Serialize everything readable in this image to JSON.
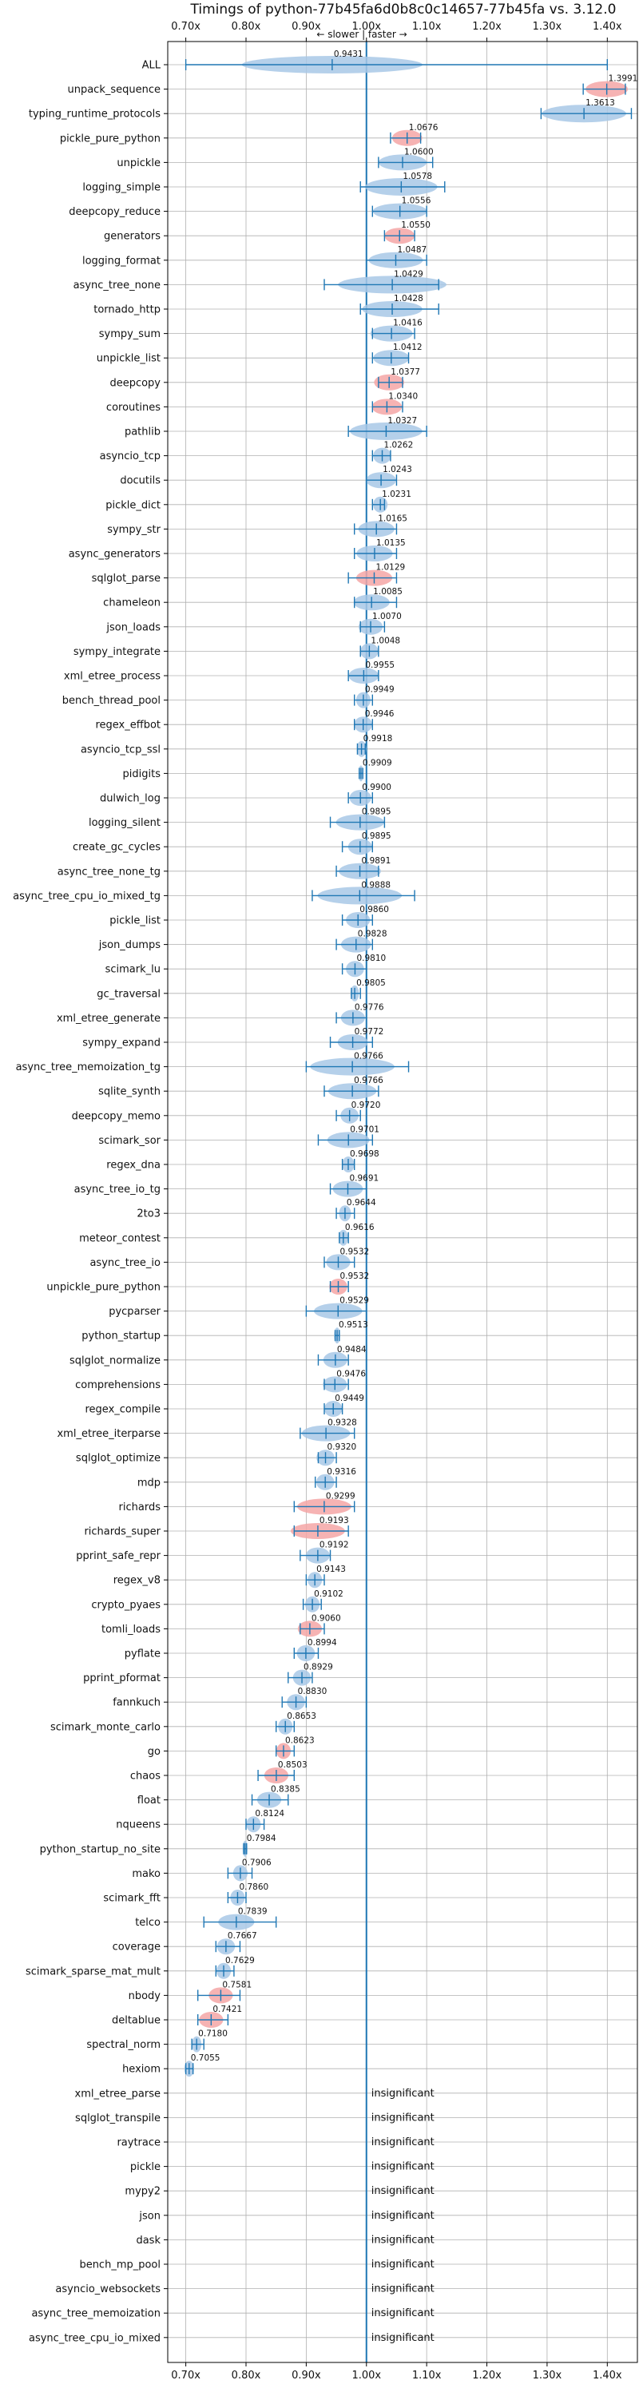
{
  "chart_data": {
    "type": "violin",
    "title": "Timings of python-77b45fa6d0b8c0c14657-77b45fa vs. 3.12.0",
    "direction_label": "← slower | faster →",
    "xlim": [
      0.67,
      1.45
    ],
    "x_ticks": [
      0.7,
      0.8,
      0.9,
      1.0,
      1.1,
      1.2,
      1.3,
      1.4
    ],
    "x_tick_labels": [
      "0.70x",
      "0.80x",
      "0.90x",
      "1.00x",
      "1.10x",
      "1.20x",
      "1.30x",
      "1.40x"
    ],
    "reference_value": 1.0,
    "grid": true,
    "colors": {
      "default_violin": "#a8c8e6",
      "highlight_violin": "#f4a6a6",
      "stroke": "#1f77b4",
      "reference_line": "#1f77b4",
      "grid": "#b0b0b0"
    },
    "insignificant_label": "insignificant",
    "benchmarks": [
      {
        "name": "ALL",
        "value": 0.9431,
        "min": 0.7,
        "max": 1.4,
        "spread": 0.15,
        "highlight": false
      },
      {
        "name": "unpack_sequence",
        "value": 1.3991,
        "min": 1.36,
        "max": 1.43,
        "spread": 0.035,
        "highlight": true
      },
      {
        "name": "typing_runtime_protocols",
        "value": 1.3613,
        "min": 1.29,
        "max": 1.44,
        "spread": 0.07,
        "highlight": false
      },
      {
        "name": "pickle_pure_python",
        "value": 1.0676,
        "min": 1.04,
        "max": 1.09,
        "spread": 0.025,
        "highlight": true
      },
      {
        "name": "unpickle",
        "value": 1.06,
        "min": 1.02,
        "max": 1.11,
        "spread": 0.04,
        "highlight": false
      },
      {
        "name": "logging_simple",
        "value": 1.0578,
        "min": 0.99,
        "max": 1.13,
        "spread": 0.06,
        "highlight": false
      },
      {
        "name": "deepcopy_reduce",
        "value": 1.0556,
        "min": 1.01,
        "max": 1.1,
        "spread": 0.045,
        "highlight": false
      },
      {
        "name": "generators",
        "value": 1.055,
        "min": 1.03,
        "max": 1.08,
        "spread": 0.025,
        "highlight": true
      },
      {
        "name": "logging_format",
        "value": 1.0487,
        "min": 1.0,
        "max": 1.1,
        "spread": 0.045,
        "highlight": false
      },
      {
        "name": "async_tree_none",
        "value": 1.0429,
        "min": 0.93,
        "max": 1.12,
        "spread": 0.09,
        "highlight": false
      },
      {
        "name": "tornado_http",
        "value": 1.0428,
        "min": 0.99,
        "max": 1.12,
        "spread": 0.05,
        "highlight": false
      },
      {
        "name": "sympy_sum",
        "value": 1.0416,
        "min": 1.01,
        "max": 1.08,
        "spread": 0.035,
        "highlight": false
      },
      {
        "name": "unpickle_list",
        "value": 1.0412,
        "min": 1.01,
        "max": 1.07,
        "spread": 0.03,
        "highlight": false
      },
      {
        "name": "deepcopy",
        "value": 1.0377,
        "min": 1.02,
        "max": 1.06,
        "spread": 0.025,
        "highlight": true
      },
      {
        "name": "coroutines",
        "value": 1.034,
        "min": 1.01,
        "max": 1.06,
        "spread": 0.025,
        "highlight": true
      },
      {
        "name": "pathlib",
        "value": 1.0327,
        "min": 0.97,
        "max": 1.1,
        "spread": 0.06,
        "highlight": false
      },
      {
        "name": "asyncio_tcp",
        "value": 1.0262,
        "min": 1.01,
        "max": 1.04,
        "spread": 0.015,
        "highlight": false
      },
      {
        "name": "docutils",
        "value": 1.0243,
        "min": 1.0,
        "max": 1.05,
        "spread": 0.025,
        "highlight": false
      },
      {
        "name": "pickle_dict",
        "value": 1.0231,
        "min": 1.01,
        "max": 1.03,
        "spread": 0.012,
        "highlight": false
      },
      {
        "name": "sympy_str",
        "value": 1.0165,
        "min": 0.98,
        "max": 1.05,
        "spread": 0.03,
        "highlight": false
      },
      {
        "name": "async_generators",
        "value": 1.0135,
        "min": 0.98,
        "max": 1.05,
        "spread": 0.03,
        "highlight": false
      },
      {
        "name": "sqlglot_parse",
        "value": 1.0129,
        "min": 0.97,
        "max": 1.05,
        "spread": 0.03,
        "highlight": true
      },
      {
        "name": "chameleon",
        "value": 1.0085,
        "min": 0.98,
        "max": 1.05,
        "spread": 0.03,
        "highlight": false
      },
      {
        "name": "json_loads",
        "value": 1.007,
        "min": 0.99,
        "max": 1.03,
        "spread": 0.02,
        "highlight": false
      },
      {
        "name": "sympy_integrate",
        "value": 1.0048,
        "min": 0.99,
        "max": 1.02,
        "spread": 0.015,
        "highlight": false
      },
      {
        "name": "xml_etree_process",
        "value": 0.9955,
        "min": 0.97,
        "max": 1.02,
        "spread": 0.025,
        "highlight": false
      },
      {
        "name": "bench_thread_pool",
        "value": 0.9949,
        "min": 0.98,
        "max": 1.01,
        "spread": 0.012,
        "highlight": false
      },
      {
        "name": "regex_effbot",
        "value": 0.9946,
        "min": 0.98,
        "max": 1.01,
        "spread": 0.015,
        "highlight": false
      },
      {
        "name": "asyncio_tcp_ssl",
        "value": 0.9918,
        "min": 0.985,
        "max": 0.998,
        "spread": 0.008,
        "highlight": false
      },
      {
        "name": "pidigits",
        "value": 0.9909,
        "min": 0.988,
        "max": 0.994,
        "spread": 0.004,
        "highlight": false
      },
      {
        "name": "dulwich_log",
        "value": 0.99,
        "min": 0.97,
        "max": 1.01,
        "spread": 0.018,
        "highlight": false
      },
      {
        "name": "logging_silent",
        "value": 0.9895,
        "min": 0.94,
        "max": 1.03,
        "spread": 0.04,
        "highlight": false
      },
      {
        "name": "create_gc_cycles",
        "value": 0.9895,
        "min": 0.96,
        "max": 1.01,
        "spread": 0.02,
        "highlight": false
      },
      {
        "name": "async_tree_none_tg",
        "value": 0.9891,
        "min": 0.95,
        "max": 1.02,
        "spread": 0.035,
        "highlight": false
      },
      {
        "name": "async_tree_cpu_io_mixed_tg",
        "value": 0.9888,
        "min": 0.91,
        "max": 1.08,
        "spread": 0.07,
        "highlight": false
      },
      {
        "name": "pickle_list",
        "value": 0.986,
        "min": 0.96,
        "max": 1.01,
        "spread": 0.02,
        "highlight": false
      },
      {
        "name": "json_dumps",
        "value": 0.9828,
        "min": 0.95,
        "max": 1.01,
        "spread": 0.025,
        "highlight": false
      },
      {
        "name": "scimark_lu",
        "value": 0.981,
        "min": 0.96,
        "max": 1.0,
        "spread": 0.015,
        "highlight": false
      },
      {
        "name": "gc_traversal",
        "value": 0.9805,
        "min": 0.975,
        "max": 0.99,
        "spread": 0.007,
        "highlight": false
      },
      {
        "name": "xml_etree_generate",
        "value": 0.9776,
        "min": 0.95,
        "max": 1.0,
        "spread": 0.02,
        "highlight": false
      },
      {
        "name": "sympy_expand",
        "value": 0.9772,
        "min": 0.94,
        "max": 1.01,
        "spread": 0.025,
        "highlight": false
      },
      {
        "name": "async_tree_memoization_tg",
        "value": 0.9766,
        "min": 0.9,
        "max": 1.07,
        "spread": 0.07,
        "highlight": false
      },
      {
        "name": "sqlite_synth",
        "value": 0.9766,
        "min": 0.93,
        "max": 1.02,
        "spread": 0.04,
        "highlight": false
      },
      {
        "name": "deepcopy_memo",
        "value": 0.972,
        "min": 0.95,
        "max": 0.99,
        "spread": 0.015,
        "highlight": false
      },
      {
        "name": "scimark_sor",
        "value": 0.9701,
        "min": 0.92,
        "max": 1.01,
        "spread": 0.035,
        "highlight": false
      },
      {
        "name": "regex_dna",
        "value": 0.9698,
        "min": 0.96,
        "max": 0.98,
        "spread": 0.01,
        "highlight": false
      },
      {
        "name": "async_tree_io_tg",
        "value": 0.9691,
        "min": 0.94,
        "max": 1.0,
        "spread": 0.025,
        "highlight": false
      },
      {
        "name": "2to3",
        "value": 0.9644,
        "min": 0.95,
        "max": 0.98,
        "spread": 0.01,
        "highlight": false
      },
      {
        "name": "meteor_contest",
        "value": 0.9616,
        "min": 0.955,
        "max": 0.97,
        "spread": 0.008,
        "highlight": false
      },
      {
        "name": "async_tree_io",
        "value": 0.9532,
        "min": 0.93,
        "max": 0.98,
        "spread": 0.02,
        "highlight": false
      },
      {
        "name": "unpickle_pure_python",
        "value": 0.9532,
        "min": 0.94,
        "max": 0.97,
        "spread": 0.015,
        "highlight": true
      },
      {
        "name": "pycparser",
        "value": 0.9529,
        "min": 0.9,
        "max": 1.0,
        "spread": 0.04,
        "highlight": false
      },
      {
        "name": "python_startup",
        "value": 0.9513,
        "min": 0.948,
        "max": 0.955,
        "spread": 0.005,
        "highlight": false
      },
      {
        "name": "sqlglot_normalize",
        "value": 0.9484,
        "min": 0.92,
        "max": 0.97,
        "spread": 0.02,
        "highlight": false
      },
      {
        "name": "comprehensions",
        "value": 0.9476,
        "min": 0.93,
        "max": 0.97,
        "spread": 0.02,
        "highlight": false
      },
      {
        "name": "regex_compile",
        "value": 0.9449,
        "min": 0.93,
        "max": 0.96,
        "spread": 0.015,
        "highlight": false
      },
      {
        "name": "xml_etree_iterparse",
        "value": 0.9328,
        "min": 0.89,
        "max": 0.98,
        "spread": 0.04,
        "highlight": false
      },
      {
        "name": "sqlglot_optimize",
        "value": 0.932,
        "min": 0.92,
        "max": 0.95,
        "spread": 0.015,
        "highlight": false
      },
      {
        "name": "mdp",
        "value": 0.9316,
        "min": 0.915,
        "max": 0.95,
        "spread": 0.015,
        "highlight": false
      },
      {
        "name": "richards",
        "value": 0.9299,
        "min": 0.88,
        "max": 0.98,
        "spread": 0.045,
        "highlight": true
      },
      {
        "name": "richards_super",
        "value": 0.9193,
        "min": 0.88,
        "max": 0.97,
        "spread": 0.045,
        "highlight": true
      },
      {
        "name": "pprint_safe_repr",
        "value": 0.9192,
        "min": 0.89,
        "max": 0.94,
        "spread": 0.02,
        "highlight": false
      },
      {
        "name": "regex_v8",
        "value": 0.9143,
        "min": 0.9,
        "max": 0.93,
        "spread": 0.012,
        "highlight": false
      },
      {
        "name": "crypto_pyaes",
        "value": 0.9102,
        "min": 0.895,
        "max": 0.925,
        "spread": 0.012,
        "highlight": false
      },
      {
        "name": "tomli_loads",
        "value": 0.906,
        "min": 0.89,
        "max": 0.93,
        "spread": 0.02,
        "highlight": true
      },
      {
        "name": "pyflate",
        "value": 0.8994,
        "min": 0.88,
        "max": 0.92,
        "spread": 0.015,
        "highlight": false
      },
      {
        "name": "pprint_pformat",
        "value": 0.8929,
        "min": 0.87,
        "max": 0.91,
        "spread": 0.015,
        "highlight": false
      },
      {
        "name": "fannkuch",
        "value": 0.883,
        "min": 0.86,
        "max": 0.9,
        "spread": 0.015,
        "highlight": false
      },
      {
        "name": "scimark_monte_carlo",
        "value": 0.8653,
        "min": 0.85,
        "max": 0.88,
        "spread": 0.012,
        "highlight": false
      },
      {
        "name": "go",
        "value": 0.8623,
        "min": 0.85,
        "max": 0.88,
        "spread": 0.012,
        "highlight": true
      },
      {
        "name": "chaos",
        "value": 0.8503,
        "min": 0.82,
        "max": 0.88,
        "spread": 0.02,
        "highlight": true
      },
      {
        "name": "float",
        "value": 0.8385,
        "min": 0.81,
        "max": 0.87,
        "spread": 0.02,
        "highlight": false
      },
      {
        "name": "nqueens",
        "value": 0.8124,
        "min": 0.8,
        "max": 0.83,
        "spread": 0.012,
        "highlight": false
      },
      {
        "name": "python_startup_no_site",
        "value": 0.7984,
        "min": 0.796,
        "max": 0.801,
        "spread": 0.004,
        "highlight": false
      },
      {
        "name": "mako",
        "value": 0.7906,
        "min": 0.77,
        "max": 0.81,
        "spread": 0.012,
        "highlight": false
      },
      {
        "name": "scimark_fft",
        "value": 0.786,
        "min": 0.77,
        "max": 0.8,
        "spread": 0.012,
        "highlight": false
      },
      {
        "name": "telco",
        "value": 0.7839,
        "min": 0.73,
        "max": 0.85,
        "spread": 0.03,
        "highlight": false
      },
      {
        "name": "coverage",
        "value": 0.7667,
        "min": 0.75,
        "max": 0.79,
        "spread": 0.015,
        "highlight": false
      },
      {
        "name": "scimark_sparse_mat_mult",
        "value": 0.7629,
        "min": 0.75,
        "max": 0.78,
        "spread": 0.012,
        "highlight": false
      },
      {
        "name": "nbody",
        "value": 0.7581,
        "min": 0.72,
        "max": 0.79,
        "spread": 0.02,
        "highlight": true
      },
      {
        "name": "deltablue",
        "value": 0.7421,
        "min": 0.72,
        "max": 0.77,
        "spread": 0.02,
        "highlight": true
      },
      {
        "name": "spectral_norm",
        "value": 0.718,
        "min": 0.71,
        "max": 0.73,
        "spread": 0.008,
        "highlight": false
      },
      {
        "name": "hexiom",
        "value": 0.7055,
        "min": 0.7,
        "max": 0.712,
        "spread": 0.008,
        "highlight": false
      },
      {
        "name": "xml_etree_parse",
        "value": null,
        "insignificant": true
      },
      {
        "name": "sqlglot_transpile",
        "value": null,
        "insignificant": true
      },
      {
        "name": "raytrace",
        "value": null,
        "insignificant": true
      },
      {
        "name": "pickle",
        "value": null,
        "insignificant": true
      },
      {
        "name": "mypy2",
        "value": null,
        "insignificant": true
      },
      {
        "name": "json",
        "value": null,
        "insignificant": true
      },
      {
        "name": "dask",
        "value": null,
        "insignificant": true
      },
      {
        "name": "bench_mp_pool",
        "value": null,
        "insignificant": true
      },
      {
        "name": "asyncio_websockets",
        "value": null,
        "insignificant": true
      },
      {
        "name": "async_tree_memoization",
        "value": null,
        "insignificant": true
      },
      {
        "name": "async_tree_cpu_io_mixed",
        "value": null,
        "insignificant": true
      }
    ]
  }
}
